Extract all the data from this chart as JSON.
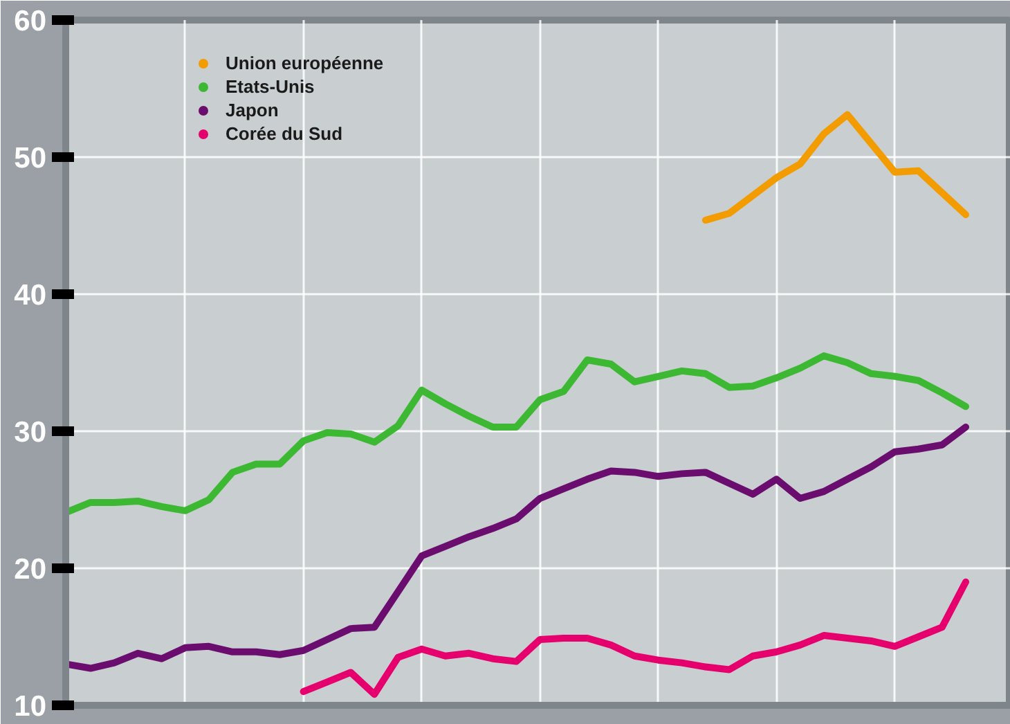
{
  "chart_data": {
    "type": "line",
    "categories": [
      null,
      null,
      null,
      null,
      null,
      null,
      null,
      null,
      null,
      null,
      null,
      null,
      null,
      null,
      null,
      null,
      null,
      null,
      null,
      null,
      null,
      null,
      null,
      null,
      null,
      null,
      null,
      null,
      null,
      null,
      null,
      null,
      null,
      null,
      null,
      null,
      null,
      null,
      null
    ],
    "series": [
      {
        "name": "Union européenne",
        "color": "#f39c00",
        "values": [
          null,
          null,
          null,
          null,
          null,
          null,
          null,
          null,
          null,
          null,
          null,
          null,
          null,
          null,
          null,
          null,
          null,
          null,
          null,
          null,
          null,
          null,
          null,
          null,
          null,
          null,
          null,
          45.4,
          45.9,
          47.2,
          48.5,
          49.5,
          51.7,
          53.1,
          51.0,
          48.9,
          49.0,
          47.4,
          45.8
        ]
      },
      {
        "name": "Etats-Unis",
        "color": "#3cb832",
        "values": [
          24.1,
          24.8,
          24.8,
          24.9,
          24.5,
          24.2,
          25.0,
          27.0,
          27.6,
          27.6,
          29.3,
          29.9,
          29.8,
          29.2,
          30.4,
          33.0,
          32.0,
          31.1,
          30.3,
          30.3,
          32.3,
          32.9,
          35.2,
          34.9,
          33.6,
          34.0,
          34.4,
          34.2,
          33.2,
          33.3,
          33.9,
          34.6,
          35.5,
          35.0,
          34.2,
          34.0,
          33.7,
          32.8,
          31.8
        ]
      },
      {
        "name": "Japon",
        "color": "#6a0d6e",
        "values": [
          13.0,
          12.7,
          13.1,
          13.8,
          13.4,
          14.2,
          14.3,
          13.9,
          13.9,
          13.7,
          14.0,
          14.8,
          15.6,
          15.7,
          18.3,
          20.9,
          21.6,
          22.3,
          22.9,
          23.6,
          25.1,
          25.8,
          26.5,
          27.1,
          27.0,
          26.7,
          26.9,
          27.0,
          26.2,
          25.4,
          26.5,
          25.1,
          25.6,
          26.5,
          27.4,
          28.5,
          28.7,
          29.0,
          30.3
        ]
      },
      {
        "name": "Corée du Sud",
        "color": "#e5006e",
        "values": [
          null,
          null,
          null,
          null,
          null,
          null,
          null,
          null,
          null,
          null,
          11.0,
          11.7,
          12.4,
          10.8,
          13.5,
          14.1,
          13.6,
          13.8,
          13.4,
          13.2,
          14.8,
          14.9,
          14.9,
          14.4,
          13.6,
          13.3,
          13.1,
          12.8,
          12.6,
          13.6,
          13.9,
          14.4,
          15.1,
          14.9,
          14.7,
          14.3,
          15.0,
          15.7,
          19.0
        ]
      }
    ],
    "ylim": [
      10,
      60
    ],
    "yticks": [
      10,
      20,
      30,
      40,
      50,
      60
    ],
    "grid": true,
    "legend": "top left",
    "tick_labels": "y",
    "line_style": "solid"
  }
}
